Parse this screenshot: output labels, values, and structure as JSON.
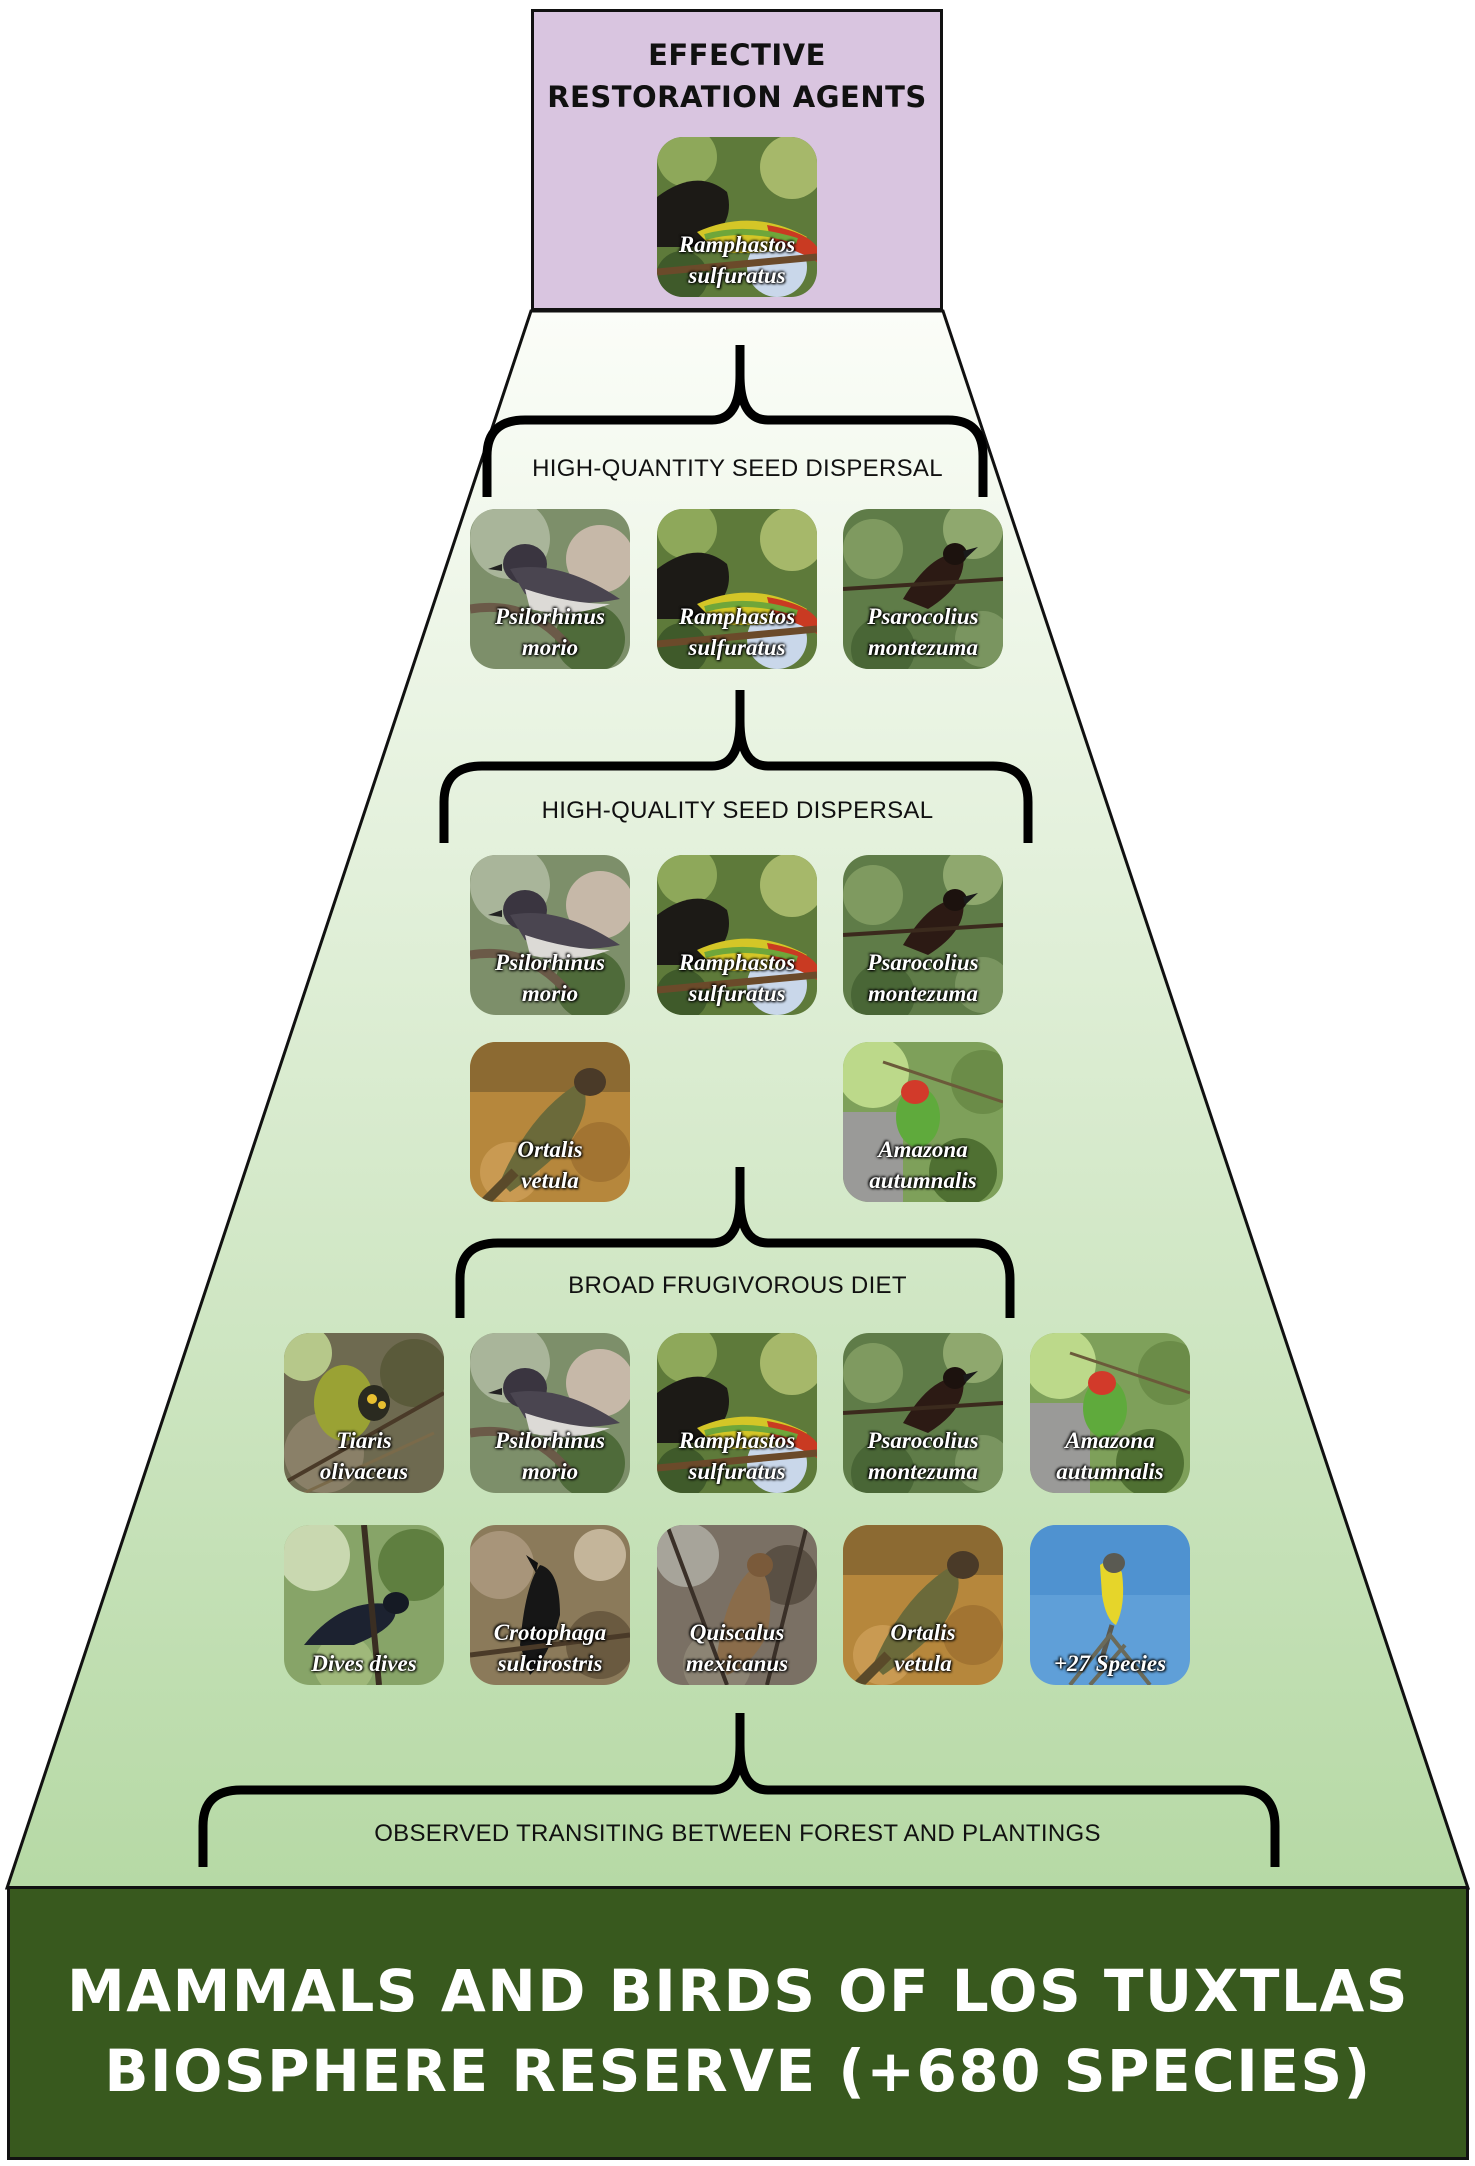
{
  "top": {
    "line1": "EFFECTIVE",
    "line2": "RESTORATION AGENTS"
  },
  "bottom": {
    "line1": "MAMMALS AND BIRDS OF LOS TUXTLAS",
    "line2": "BIOSPHERE RESERVE (+680 SPECIES)"
  },
  "levels": {
    "quantity": "HIGH-QUANTITY SEED DISPERSAL",
    "quality": "HIGH-QUALITY SEED DISPERSAL",
    "diet": "BROAD FRUGIVOROUS DIET",
    "transit": "OBSERVED TRANSITING BETWEEN FOREST AND PLANTINGS"
  },
  "species": {
    "ramphastos": {
      "l1": "Ramphastos",
      "l2": "sulfuratus",
      "icon": "toucan-photo"
    },
    "psilorhinus": {
      "l1": "Psilorhinus",
      "l2": "morio",
      "icon": "jay-photo"
    },
    "psarocolius": {
      "l1": "Psarocolius",
      "l2": "montezuma",
      "icon": "oropendola-photo"
    },
    "ortalis": {
      "l1": "Ortalis",
      "l2": "vetula",
      "icon": "chachalaca-photo"
    },
    "amazona": {
      "l1": "Amazona",
      "l2": "autumnalis",
      "icon": "parrot-photo"
    },
    "tiaris": {
      "l1": "Tiaris",
      "l2": "olivaceus",
      "icon": "grassquit-photo"
    },
    "dives": {
      "l1": "Dives dives",
      "l2": "",
      "icon": "blackbird-photo"
    },
    "crotophaga": {
      "l1": "Crotophaga",
      "l2": "sulcirostris",
      "icon": "ani-photo"
    },
    "quiscalus": {
      "l1": "Quiscalus",
      "l2": "mexicanus",
      "icon": "grackle-photo"
    },
    "more": {
      "l1": "+27 Species",
      "l2": "",
      "icon": "flycatcher-photo"
    }
  },
  "colors": {
    "top_box": "#d9c5e0",
    "bottom_box": "#38591e",
    "pyramid_top": "#fbfdf8",
    "pyramid_bottom": "#b6d9a5"
  }
}
